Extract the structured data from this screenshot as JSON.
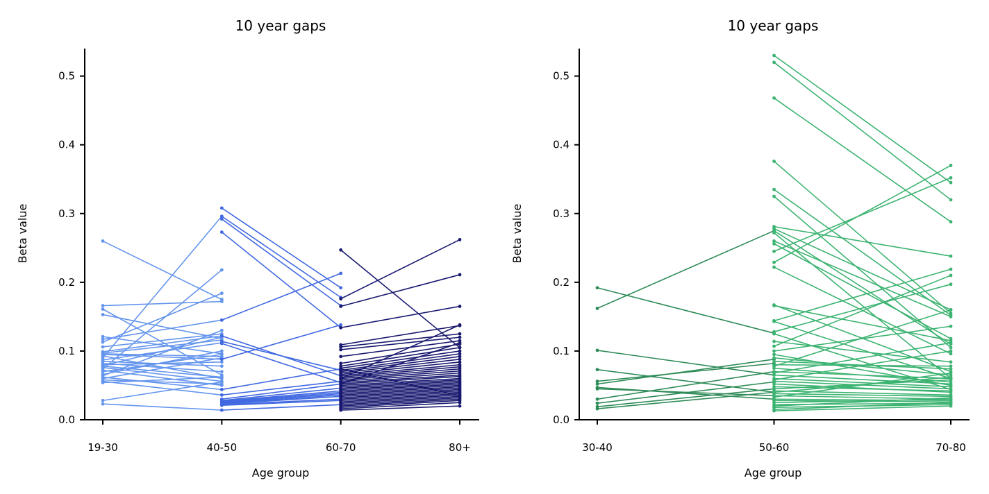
{
  "chart_data": [
    {
      "type": "line",
      "title": "10 year gaps",
      "xlabel": "Age group",
      "ylabel": "Beta value",
      "categories": [
        "19-30",
        "40-50",
        "60-70",
        "80+"
      ],
      "ylim": [
        0,
        0.54
      ],
      "yticks": [
        0.0,
        0.1,
        0.2,
        0.3,
        0.4,
        0.5
      ],
      "ytick_labels": [
        "0.0",
        "0.1",
        "0.2",
        "0.3",
        "0.4",
        "0.5"
      ],
      "grid": false,
      "series": [
        {
          "from": 0,
          "to": 1,
          "color": "#6495ED",
          "pairs": [
            [
              0.26,
              0.175
            ],
            [
              0.166,
              0.172
            ],
            [
              0.161,
              0.065
            ],
            [
              0.153,
              0.118
            ],
            [
              0.121,
              0.096
            ],
            [
              0.117,
              0.145
            ],
            [
              0.113,
              0.184
            ],
            [
              0.106,
              0.125
            ],
            [
              0.099,
              0.122
            ],
            [
              0.097,
              0.116
            ],
            [
              0.096,
              0.092
            ],
            [
              0.095,
              0.088
            ],
            [
              0.093,
              0.06
            ],
            [
              0.09,
              0.296
            ],
            [
              0.087,
              0.112
            ],
            [
              0.085,
              0.078
            ],
            [
              0.082,
              0.07
            ],
            [
              0.08,
              0.084
            ],
            [
              0.079,
              0.12
            ],
            [
              0.078,
              0.062
            ],
            [
              0.076,
              0.056
            ],
            [
              0.074,
              0.218
            ],
            [
              0.072,
              0.05
            ],
            [
              0.07,
              0.095
            ],
            [
              0.066,
              0.1
            ],
            [
              0.064,
              0.13
            ],
            [
              0.062,
              0.044
            ],
            [
              0.06,
              0.09
            ],
            [
              0.058,
              0.052
            ],
            [
              0.056,
              0.036
            ],
            [
              0.054,
              0.062
            ],
            [
              0.028,
              0.055
            ],
            [
              0.023,
              0.014
            ]
          ]
        },
        {
          "from": 1,
          "to": 2,
          "color": "#4169E1",
          "pairs": [
            [
              0.308,
              0.192
            ],
            [
              0.296,
              0.178
            ],
            [
              0.292,
              0.166
            ],
            [
              0.273,
              0.134
            ],
            [
              0.145,
              0.213
            ],
            [
              0.122,
              0.064
            ],
            [
              0.114,
              0.072
            ],
            [
              0.111,
              0.054
            ],
            [
              0.088,
              0.138
            ],
            [
              0.044,
              0.074
            ],
            [
              0.036,
              0.056
            ],
            [
              0.03,
              0.052
            ],
            [
              0.028,
              0.046
            ],
            [
              0.027,
              0.042
            ],
            [
              0.026,
              0.04
            ],
            [
              0.025,
              0.038
            ],
            [
              0.024,
              0.036
            ],
            [
              0.023,
              0.034
            ],
            [
              0.022,
              0.03
            ],
            [
              0.021,
              0.028
            ],
            [
              0.014,
              0.022
            ]
          ]
        },
        {
          "from": 2,
          "to": 3,
          "color": "#191970",
          "pairs": [
            [
              0.247,
              0.105
            ],
            [
              0.176,
              0.262
            ],
            [
              0.165,
              0.211
            ],
            [
              0.134,
              0.165
            ],
            [
              0.109,
              0.137
            ],
            [
              0.106,
              0.125
            ],
            [
              0.102,
              0.12
            ],
            [
              0.092,
              0.115
            ],
            [
              0.082,
              0.11
            ],
            [
              0.078,
              0.105
            ],
            [
              0.075,
              0.1
            ],
            [
              0.072,
              0.096
            ],
            [
              0.07,
              0.092
            ],
            [
              0.068,
              0.088
            ],
            [
              0.066,
              0.084
            ],
            [
              0.064,
              0.08
            ],
            [
              0.062,
              0.077
            ],
            [
              0.06,
              0.074
            ],
            [
              0.058,
              0.071
            ],
            [
              0.056,
              0.068
            ],
            [
              0.054,
              0.065
            ],
            [
              0.052,
              0.063
            ],
            [
              0.05,
              0.06
            ],
            [
              0.048,
              0.058
            ],
            [
              0.046,
              0.056
            ],
            [
              0.044,
              0.054
            ],
            [
              0.042,
              0.052
            ],
            [
              0.04,
              0.05
            ],
            [
              0.038,
              0.048
            ],
            [
              0.036,
              0.046
            ],
            [
              0.034,
              0.044
            ],
            [
              0.032,
              0.042
            ],
            [
              0.03,
              0.04
            ],
            [
              0.028,
              0.038
            ],
            [
              0.026,
              0.036
            ],
            [
              0.024,
              0.034
            ],
            [
              0.022,
              0.032
            ],
            [
              0.02,
              0.03
            ],
            [
              0.018,
              0.028
            ],
            [
              0.016,
              0.025
            ],
            [
              0.014,
              0.02
            ],
            [
              0.052,
              0.112
            ],
            [
              0.06,
              0.138
            ],
            [
              0.074,
              0.035
            ]
          ]
        }
      ]
    },
    {
      "type": "line",
      "title": "10 year gaps",
      "xlabel": "Age group",
      "ylabel": "Beta value",
      "categories": [
        "30-40",
        "50-60",
        "70-80"
      ],
      "ylim": [
        0,
        0.54
      ],
      "yticks": [
        0.0,
        0.1,
        0.2,
        0.3,
        0.4,
        0.5
      ],
      "ytick_labels": [
        "0.0",
        "0.1",
        "0.2",
        "0.3",
        "0.4",
        "0.5"
      ],
      "grid": false,
      "series": [
        {
          "from": 0,
          "to": 1,
          "color": "#2E8B57",
          "pairs": [
            [
              0.192,
              0.126
            ],
            [
              0.162,
              0.275
            ],
            [
              0.101,
              0.065
            ],
            [
              0.073,
              0.04
            ],
            [
              0.056,
              0.082
            ],
            [
              0.052,
              0.088
            ],
            [
              0.047,
              0.03
            ],
            [
              0.045,
              0.035
            ],
            [
              0.03,
              0.07
            ],
            [
              0.024,
              0.055
            ],
            [
              0.019,
              0.045
            ],
            [
              0.016,
              0.04
            ]
          ]
        },
        {
          "from": 1,
          "to": 2,
          "color": "#3CB371",
          "pairs": [
            [
              0.53,
              0.345
            ],
            [
              0.52,
              0.32
            ],
            [
              0.468,
              0.288
            ],
            [
              0.376,
              0.155
            ],
            [
              0.335,
              0.152
            ],
            [
              0.325,
              0.105
            ],
            [
              0.281,
              0.238
            ],
            [
              0.278,
              0.16
            ],
            [
              0.275,
              0.11
            ],
            [
              0.272,
              0.06
            ],
            [
              0.26,
              0.15
            ],
            [
              0.256,
              0.118
            ],
            [
              0.245,
              0.352
            ],
            [
              0.229,
              0.37
            ],
            [
              0.222,
              0.096
            ],
            [
              0.167,
              0.07
            ],
            [
              0.166,
              0.115
            ],
            [
              0.144,
              0.219
            ],
            [
              0.143,
              0.06
            ],
            [
              0.128,
              0.197
            ],
            [
              0.125,
              0.044
            ],
            [
              0.114,
              0.084
            ],
            [
              0.107,
              0.21
            ],
            [
              0.1,
              0.136
            ],
            [
              0.095,
              0.05
            ],
            [
              0.09,
              0.065
            ],
            [
              0.085,
              0.074
            ],
            [
              0.08,
              0.078
            ],
            [
              0.075,
              0.055
            ],
            [
              0.07,
              0.06
            ],
            [
              0.065,
              0.052
            ],
            [
              0.06,
              0.048
            ],
            [
              0.056,
              0.045
            ],
            [
              0.052,
              0.04
            ],
            [
              0.048,
              0.042
            ],
            [
              0.045,
              0.058
            ],
            [
              0.042,
              0.036
            ],
            [
              0.04,
              0.062
            ],
            [
              0.038,
              0.034
            ],
            [
              0.035,
              0.03
            ],
            [
              0.033,
              0.068
            ],
            [
              0.03,
              0.028
            ],
            [
              0.028,
              0.026
            ],
            [
              0.025,
              0.03
            ],
            [
              0.022,
              0.024
            ],
            [
              0.02,
              0.032
            ],
            [
              0.018,
              0.022
            ],
            [
              0.015,
              0.025
            ],
            [
              0.013,
              0.02
            ],
            [
              0.058,
              0.1
            ],
            [
              0.068,
              0.112
            ],
            [
              0.078,
              0.16
            ]
          ]
        }
      ]
    }
  ]
}
